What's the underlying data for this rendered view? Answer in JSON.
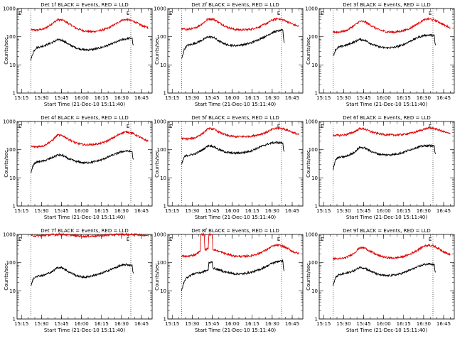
{
  "chart_data": {
    "type": "line",
    "scale": "log",
    "ylim": [
      1,
      1000
    ],
    "yticks": [
      "1",
      "10",
      "100",
      "1000"
    ],
    "ylabel": "Counts/sec",
    "xlabel": "Start Time (21-Dec-10 15:11:40)",
    "xticks": [
      "15:15",
      "15:30",
      "15:45",
      "16:00",
      "16:15",
      "16:30",
      "16:45"
    ],
    "xtick_minutes": [
      15,
      30,
      45,
      60,
      75,
      90,
      105
    ],
    "xlim_minutes": [
      11.67,
      113
    ],
    "vlines_minutes": [
      22,
      97
    ],
    "marker_E_minutes": 98,
    "colors": {
      "events": "#000000",
      "lld": "#e00000"
    },
    "panels": [
      {
        "title": "Det 1f BLACK = Events, RED = LLD",
        "series": [
          {
            "name": "LLD",
            "x": [
              22,
              26,
              32,
              38,
              42,
              46,
              50,
              56,
              62,
              68,
              74,
              80,
              86,
              90,
              94,
              98,
              102,
              106,
              110
            ],
            "y": [
              175,
              170,
              190,
              290,
              400,
              390,
              300,
              200,
              160,
              150,
              165,
              200,
              290,
              380,
              410,
              370,
              300,
              240,
              210
            ]
          },
          {
            "name": "Events",
            "x": [
              22,
              24,
              26,
              32,
              38,
              42,
              46,
              50,
              56,
              62,
              68,
              74,
              80,
              86,
              90,
              94,
              98,
              98.5,
              99
            ],
            "y": [
              15,
              30,
              40,
              48,
              62,
              78,
              74,
              55,
              40,
              34,
              35,
              40,
              50,
              64,
              78,
              85,
              90,
              55,
              50
            ]
          }
        ]
      },
      {
        "title": "Det 2f BLACK = Events, RED = LLD",
        "series": [
          {
            "name": "LLD",
            "x": [
              22,
              26,
              32,
              38,
              42,
              46,
              50,
              56,
              62,
              68,
              74,
              80,
              86,
              90,
              94,
              98,
              102,
              106,
              110
            ],
            "y": [
              190,
              180,
              200,
              300,
              430,
              420,
              320,
              220,
              180,
              175,
              185,
              220,
              300,
              390,
              440,
              400,
              330,
              270,
              230
            ]
          },
          {
            "name": "Events",
            "x": [
              22,
              24,
              26,
              32,
              38,
              42,
              46,
              50,
              56,
              62,
              68,
              74,
              80,
              86,
              90,
              94,
              98,
              98.5,
              99
            ],
            "y": [
              16,
              35,
              48,
              58,
              78,
              100,
              95,
              70,
              52,
              48,
              52,
              60,
              80,
              110,
              140,
              160,
              170,
              90,
              60
            ]
          }
        ]
      },
      {
        "title": "Det 3f BLACK = Events, RED = LLD",
        "series": [
          {
            "name": "LLD",
            "x": [
              22,
              26,
              32,
              38,
              42,
              46,
              50,
              56,
              62,
              68,
              74,
              80,
              86,
              90,
              94,
              98,
              102,
              106,
              110
            ],
            "y": [
              150,
              145,
              165,
              250,
              350,
              340,
              260,
              180,
              150,
              145,
              160,
              200,
              300,
              390,
              430,
              390,
              320,
              250,
              210
            ]
          },
          {
            "name": "Events",
            "x": [
              22,
              24,
              26,
              32,
              38,
              42,
              46,
              50,
              56,
              62,
              68,
              74,
              80,
              86,
              90,
              94,
              98,
              98.5,
              99
            ],
            "y": [
              20,
              35,
              42,
              50,
              65,
              80,
              75,
              58,
              44,
              40,
              42,
              50,
              70,
              95,
              110,
              115,
              110,
              60,
              50
            ]
          }
        ]
      },
      {
        "title": "Det 4f BLACK = Events, RED = LLD",
        "series": [
          {
            "name": "LLD",
            "x": [
              22,
              26,
              32,
              38,
              42,
              46,
              50,
              56,
              62,
              68,
              74,
              80,
              86,
              90,
              94,
              98,
              102,
              106,
              110
            ],
            "y": [
              130,
              125,
              140,
              210,
              330,
              310,
              240,
              170,
              150,
              150,
              165,
              210,
              300,
              390,
              430,
              390,
              310,
              240,
              200
            ]
          },
          {
            "name": "Events",
            "x": [
              22,
              24,
              26,
              32,
              38,
              42,
              46,
              50,
              56,
              62,
              68,
              74,
              80,
              86,
              90,
              94,
              98,
              98.5,
              99
            ],
            "y": [
              15,
              30,
              36,
              40,
              52,
              65,
              62,
              48,
              38,
              34,
              36,
              42,
              55,
              72,
              85,
              90,
              85,
              50,
              45
            ]
          }
        ]
      },
      {
        "title": "Det 5f BLACK = Events, RED = LLD",
        "series": [
          {
            "name": "LLD",
            "x": [
              22,
              26,
              32,
              38,
              42,
              46,
              50,
              56,
              62,
              68,
              74,
              80,
              86,
              90,
              94,
              98,
              102,
              106,
              110
            ],
            "y": [
              250,
              240,
              260,
              380,
              560,
              540,
              420,
              320,
              290,
              290,
              300,
              340,
              420,
              520,
              580,
              560,
              480,
              400,
              340
            ]
          },
          {
            "name": "Events",
            "x": [
              22,
              24,
              26,
              32,
              38,
              42,
              46,
              50,
              56,
              62,
              68,
              74,
              80,
              86,
              90,
              94,
              98,
              98.5,
              99
            ],
            "y": [
              30,
              55,
              62,
              70,
              100,
              140,
              130,
              100,
              80,
              75,
              78,
              90,
              120,
              155,
              175,
              180,
              170,
              100,
              85
            ]
          }
        ]
      },
      {
        "title": "Det 6f BLACK = Events, RED = LLD",
        "series": [
          {
            "name": "LLD",
            "x": [
              22,
              26,
              32,
              38,
              42,
              46,
              50,
              56,
              62,
              68,
              74,
              80,
              86,
              90,
              94,
              98,
              102,
              106,
              110
            ],
            "y": [
              330,
              320,
              340,
              430,
              560,
              540,
              440,
              370,
              340,
              330,
              345,
              380,
              450,
              530,
              580,
              560,
              490,
              420,
              360
            ]
          },
          {
            "name": "Events",
            "x": [
              22,
              24,
              26,
              32,
              38,
              42,
              46,
              50,
              56,
              62,
              68,
              74,
              80,
              86,
              90,
              94,
              98,
              98.5,
              99
            ],
            "y": [
              20,
              45,
              52,
              58,
              80,
              120,
              115,
              90,
              70,
              65,
              68,
              78,
              100,
              125,
              135,
              140,
              135,
              80,
              70
            ]
          }
        ]
      },
      {
        "title": "Det 7f BLACK = Events, RED = LLD",
        "series": [
          {
            "name": "LLD",
            "x": [
              22,
              26,
              32,
              38,
              42,
              46,
              50,
              56,
              62,
              68,
              74,
              80,
              86,
              90,
              94,
              98,
              102,
              106,
              110
            ],
            "y": [
              900,
              880,
              920,
              980,
              1000,
              1000,
              960,
              900,
              860,
              870,
              900,
              960,
              1000,
              1000,
              1000,
              1000,
              980,
              950,
              920
            ]
          },
          {
            "name": "Events",
            "x": [
              22,
              24,
              26,
              32,
              38,
              42,
              46,
              50,
              56,
              62,
              68,
              74,
              80,
              86,
              90,
              94,
              98,
              98.5,
              99
            ],
            "y": [
              15,
              28,
              33,
              36,
              48,
              68,
              65,
              48,
              35,
              30,
              34,
              40,
              52,
              68,
              80,
              85,
              80,
              48,
              42
            ]
          }
        ]
      },
      {
        "title": "Det 8f BLACK = Events, RED = LLD",
        "series": [
          {
            "name": "LLD",
            "x": [
              22,
              26,
              32,
              36,
              36.5,
              39,
              39.5,
              42,
              42.5,
              45,
              45.5,
              50,
              56,
              62,
              68,
              74,
              80,
              86,
              90,
              94,
              98,
              102,
              106,
              110
            ],
            "y": [
              170,
              165,
              190,
              250,
              1000,
              1000,
              280,
              320,
              1000,
              1000,
              300,
              250,
              200,
              170,
              165,
              175,
              210,
              290,
              380,
              420,
              380,
              310,
              240,
              210
            ]
          },
          {
            "name": "Events",
            "x": [
              22,
              24,
              26,
              30,
              34,
              35,
              42,
              42.5,
              45,
              45.5,
              50,
              56,
              62,
              68,
              74,
              80,
              86,
              90,
              94,
              98,
              98.5,
              99
            ],
            "y": [
              10,
              22,
              30,
              38,
              45,
              42,
              55,
              95,
              110,
              65,
              55,
              45,
              40,
              40,
              45,
              55,
              75,
              95,
              110,
              115,
              60,
              50
            ]
          }
        ]
      },
      {
        "title": "Det 9f BLACK = Events, RED = LLD",
        "series": [
          {
            "name": "LLD",
            "x": [
              22,
              26,
              32,
              38,
              42,
              46,
              50,
              56,
              62,
              68,
              74,
              80,
              86,
              90,
              94,
              98,
              102,
              106,
              110
            ],
            "y": [
              140,
              135,
              150,
              220,
              340,
              330,
              250,
              180,
              150,
              145,
              160,
              200,
              290,
              380,
              420,
              380,
              300,
              230,
              190
            ]
          },
          {
            "name": "Events",
            "x": [
              22,
              24,
              26,
              32,
              38,
              42,
              46,
              50,
              56,
              62,
              68,
              74,
              80,
              86,
              90,
              94,
              98,
              98.5,
              99
            ],
            "y": [
              15,
              30,
              36,
              42,
              52,
              68,
              64,
              50,
              38,
              34,
              36,
              42,
              55,
              72,
              85,
              90,
              85,
              50,
              45
            ]
          }
        ]
      }
    ]
  }
}
